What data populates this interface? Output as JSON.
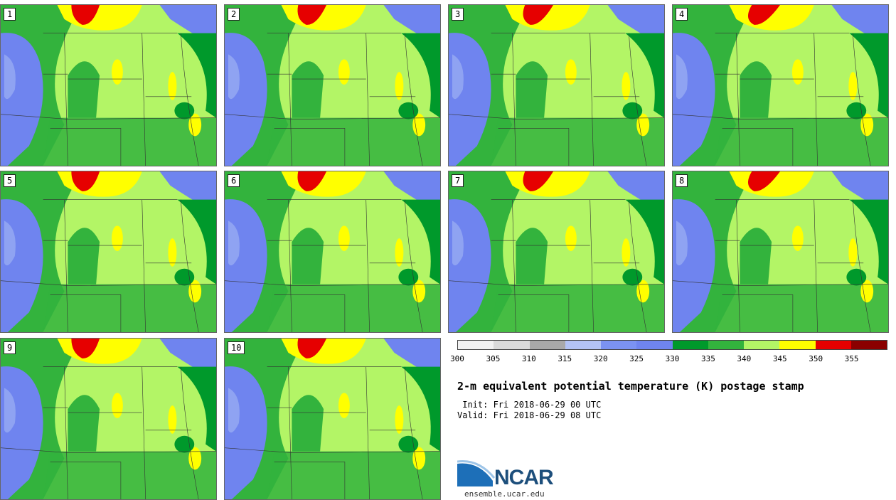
{
  "panels": [
    {
      "label": "1"
    },
    {
      "label": "2"
    },
    {
      "label": "3"
    },
    {
      "label": "4"
    },
    {
      "label": "5"
    },
    {
      "label": "6"
    },
    {
      "label": "7"
    },
    {
      "label": "8"
    },
    {
      "label": "9"
    },
    {
      "label": "10"
    }
  ],
  "colorbar": {
    "ticks": [
      "300",
      "305",
      "310",
      "315",
      "320",
      "325",
      "330",
      "335",
      "340",
      "345",
      "350",
      "355"
    ],
    "colors": [
      "#f2f2f2",
      "#dadada",
      "#a9a9a9",
      "#b3c3f5",
      "#7b92f2",
      "#6f84ef",
      "#00992b",
      "#33b33d",
      "#b3f566",
      "#ffff00",
      "#e60000",
      "#8b0000"
    ]
  },
  "title": "2-m equivalent potential temperature (K) postage stamp",
  "init": " Init: Fri 2018-06-29 00 UTC",
  "valid": "Valid: Fri 2018-06-29 08 UTC",
  "logo": {
    "text": "NCAR",
    "url": "ensemble.ucar.edu",
    "accent": "#1d4f7c"
  },
  "map_colors": {
    "cool": "#6f84ef",
    "cool_light": "#8fa3f2",
    "green_dark": "#00992b",
    "green": "#33b33d",
    "light_green": "#b3f566",
    "yellow": "#ffff00",
    "red": "#e60000"
  }
}
